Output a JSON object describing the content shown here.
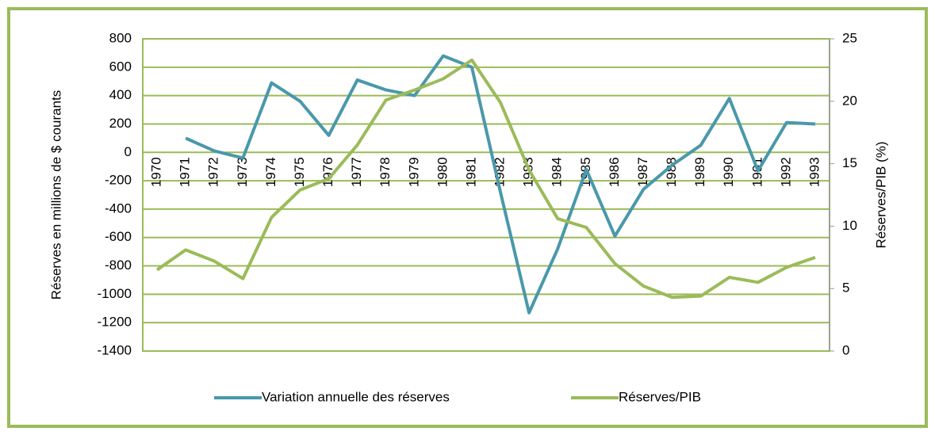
{
  "chart_data": {
    "type": "line",
    "ylabel": "Réserves en millions de $ courants",
    "y2label": "Réserves/PIB (%)",
    "categories": [
      "1970",
      "1971",
      "1972",
      "1973",
      "1974",
      "1975",
      "1976",
      "1977",
      "1978",
      "1979",
      "1980",
      "1981",
      "1982",
      "1983",
      "1984",
      "1985",
      "1986",
      "1987",
      "1988",
      "1989",
      "1990",
      "1991",
      "1992",
      "1993"
    ],
    "series": [
      {
        "name": "Variation annuelle des réserves",
        "color": "#4a98ab",
        "axis": "y",
        "values": [
          null,
          100,
          10,
          -40,
          490,
          360,
          120,
          510,
          440,
          400,
          680,
          600,
          -280,
          -1130,
          -680,
          -120,
          -590,
          -260,
          -90,
          50,
          380,
          -130,
          210,
          200
        ]
      },
      {
        "name": "Réserves/PIB",
        "color": "#9bbb59",
        "axis": "y2",
        "values": [
          6.5,
          8.1,
          7.2,
          5.8,
          10.7,
          12.9,
          13.8,
          16.5,
          20.1,
          20.9,
          21.8,
          23.3,
          19.9,
          14.5,
          10.6,
          9.9,
          7.0,
          5.2,
          4.3,
          4.4,
          5.9,
          5.5,
          6.7,
          7.5
        ]
      }
    ],
    "ylim": [
      -1400,
      800
    ],
    "yticks": [
      800,
      600,
      400,
      200,
      0,
      -200,
      -400,
      -600,
      -800,
      -1000,
      -1200,
      -1400
    ],
    "y2lim": [
      0,
      25
    ],
    "y2ticks": [
      25,
      20,
      15,
      10,
      5,
      0
    ],
    "grid": true,
    "legend": "bottom"
  }
}
